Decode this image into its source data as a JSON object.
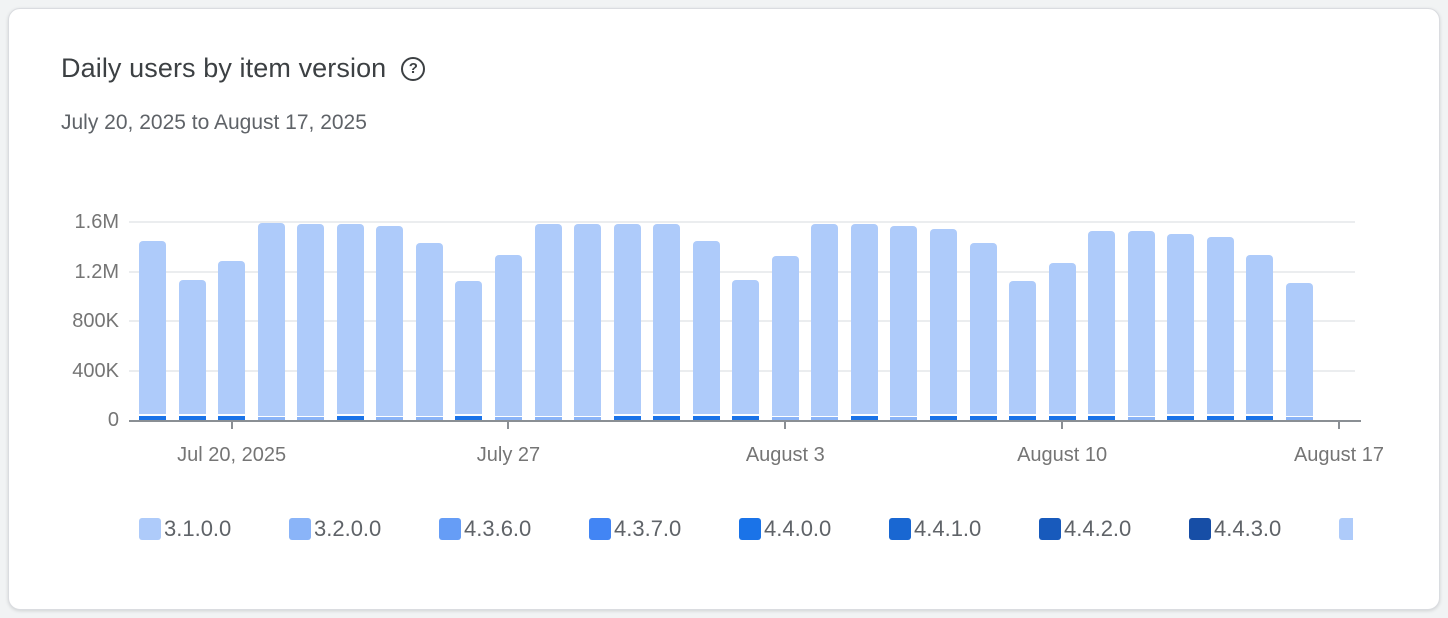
{
  "card": {
    "title": "Daily users by item version",
    "help_icon_glyph": "?",
    "date_range": "July 20, 2025 to August 17, 2025"
  },
  "chart_data": {
    "type": "bar",
    "stacked": true,
    "title": "Daily users by item version",
    "date_range": "July 20, 2025 to August 17, 2025",
    "unit": "daily users",
    "grid": true,
    "legend_position": "bottom",
    "ylim": [
      0,
      1650000
    ],
    "bar_color": "#aecbfa",
    "accent_colors": {
      "dark": "#1a73e8",
      "light": "#8ab4f8"
    },
    "y_ticks": [
      {
        "label": "1.6M",
        "value": 1600000
      },
      {
        "label": "1.2M",
        "value": 1200000
      },
      {
        "label": "800K",
        "value": 800000
      },
      {
        "label": "400K",
        "value": 400000
      },
      {
        "label": "0",
        "value": 0
      }
    ],
    "x_ticks": [
      {
        "label": "Jul 20, 2025",
        "day_index": 2
      },
      {
        "label": "July 27",
        "day_index": 9
      },
      {
        "label": "August 3",
        "day_index": 16
      },
      {
        "label": "August 10",
        "day_index": 23
      },
      {
        "label": "August 17",
        "day_index": 30
      }
    ],
    "legend": [
      {
        "label": "3.1.0.0",
        "color": "#aecbfa"
      },
      {
        "label": "3.2.0.0",
        "color": "#8ab4f8"
      },
      {
        "label": "4.3.6.0",
        "color": "#669df6"
      },
      {
        "label": "4.3.7.0",
        "color": "#4285f4"
      },
      {
        "label": "4.4.0.0",
        "color": "#1a73e8"
      },
      {
        "label": "4.4.1.0",
        "color": "#1967d2"
      },
      {
        "label": "4.4.2.0",
        "color": "#185abc"
      },
      {
        "label": "4.4.3.0",
        "color": "#174ea6"
      },
      {
        "label": "",
        "color": "#aecbfa"
      }
    ],
    "days": [
      {
        "date": "Jul 18",
        "total": 1445000,
        "accent": "dark",
        "accent_value": 35000
      },
      {
        "date": "Jul 19",
        "total": 1135000,
        "accent": "dark",
        "accent_value": 35000
      },
      {
        "date": "Jul 20",
        "total": 1285000,
        "accent": "dark",
        "accent_value": 35000
      },
      {
        "date": "Jul 21",
        "total": 1590000,
        "accent": "light",
        "accent_value": 24000
      },
      {
        "date": "Jul 22",
        "total": 1580000,
        "accent": "light",
        "accent_value": 24000
      },
      {
        "date": "Jul 23",
        "total": 1580000,
        "accent": "dark",
        "accent_value": 35000
      },
      {
        "date": "Jul 24",
        "total": 1565000,
        "accent": "light",
        "accent_value": 24000
      },
      {
        "date": "Jul 25",
        "total": 1430000,
        "accent": "light",
        "accent_value": 24000
      },
      {
        "date": "Jul 26",
        "total": 1125000,
        "accent": "dark",
        "accent_value": 35000
      },
      {
        "date": "Jul 27",
        "total": 1335000,
        "accent": "light",
        "accent_value": 24000
      },
      {
        "date": "Jul 28",
        "total": 1585000,
        "accent": "light",
        "accent_value": 24000
      },
      {
        "date": "Jul 29",
        "total": 1580000,
        "accent": "light",
        "accent_value": 24000
      },
      {
        "date": "Jul 30",
        "total": 1580000,
        "accent": "dark",
        "accent_value": 35000
      },
      {
        "date": "Jul 31",
        "total": 1580000,
        "accent": "dark",
        "accent_value": 35000
      },
      {
        "date": "Aug 1",
        "total": 1445000,
        "accent": "dark",
        "accent_value": 35000
      },
      {
        "date": "Aug 2",
        "total": 1135000,
        "accent": "dark",
        "accent_value": 35000
      },
      {
        "date": "Aug 3",
        "total": 1325000,
        "accent": "light",
        "accent_value": 24000
      },
      {
        "date": "Aug 4",
        "total": 1580000,
        "accent": "light",
        "accent_value": 24000
      },
      {
        "date": "Aug 5",
        "total": 1580000,
        "accent": "dark",
        "accent_value": 35000
      },
      {
        "date": "Aug 6",
        "total": 1565000,
        "accent": "light",
        "accent_value": 24000
      },
      {
        "date": "Aug 7",
        "total": 1540000,
        "accent": "dark",
        "accent_value": 35000
      },
      {
        "date": "Aug 8",
        "total": 1430000,
        "accent": "dark",
        "accent_value": 35000
      },
      {
        "date": "Aug 9",
        "total": 1120000,
        "accent": "dark",
        "accent_value": 35000
      },
      {
        "date": "Aug 10",
        "total": 1265000,
        "accent": "dark",
        "accent_value": 35000
      },
      {
        "date": "Aug 11",
        "total": 1525000,
        "accent": "dark",
        "accent_value": 35000
      },
      {
        "date": "Aug 12",
        "total": 1525000,
        "accent": "light",
        "accent_value": 24000
      },
      {
        "date": "Aug 13",
        "total": 1505000,
        "accent": "dark",
        "accent_value": 35000
      },
      {
        "date": "Aug 14",
        "total": 1480000,
        "accent": "dark",
        "accent_value": 35000
      },
      {
        "date": "Aug 15",
        "total": 1335000,
        "accent": "dark",
        "accent_value": 35000
      },
      {
        "date": "Aug 16",
        "total": 1110000,
        "accent": "light",
        "accent_value": 24000
      }
    ]
  }
}
